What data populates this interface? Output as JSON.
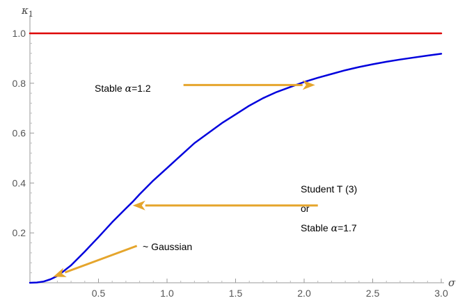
{
  "chart_data": {
    "type": "line",
    "xlabel": "σ",
    "ylabel": "κ1",
    "xlim": [
      0.0,
      3.0
    ],
    "ylim": [
      0.0,
      1.0
    ],
    "x_ticks": [
      0.5,
      1.0,
      1.5,
      2.0,
      2.5,
      3.0
    ],
    "y_ticks": [
      0.2,
      0.4,
      0.6,
      0.8,
      1.0
    ],
    "tick_format_x": [
      "0.5",
      "1.0",
      "1.5",
      "2.0",
      "2.5",
      "3.0"
    ],
    "tick_format_y": [
      "0.2",
      "0.4",
      "0.6",
      "0.8",
      "1.0"
    ],
    "grid": false,
    "series": [
      {
        "color": "#dd0000",
        "x": [
          0.0,
          3.0
        ],
        "y": [
          1.0,
          1.0
        ]
      },
      {
        "color": "#0000dd",
        "x": [
          0.0,
          0.05,
          0.1,
          0.15,
          0.2,
          0.3,
          0.4,
          0.5,
          0.6,
          0.7,
          0.75,
          0.8,
          0.9,
          1.0,
          1.1,
          1.2,
          1.3,
          1.4,
          1.5,
          1.6,
          1.7,
          1.8,
          1.9,
          2.0,
          2.1,
          2.2,
          2.3,
          2.4,
          2.5,
          2.6,
          2.7,
          2.8,
          2.9,
          3.0
        ],
        "y": [
          0.0,
          0.001,
          0.005,
          0.014,
          0.027,
          0.07,
          0.125,
          0.183,
          0.243,
          0.298,
          0.325,
          0.355,
          0.41,
          0.46,
          0.51,
          0.56,
          0.6,
          0.64,
          0.675,
          0.71,
          0.74,
          0.765,
          0.785,
          0.805,
          0.822,
          0.837,
          0.852,
          0.865,
          0.876,
          0.886,
          0.895,
          0.903,
          0.911,
          0.918
        ]
      }
    ],
    "annotations": [
      {
        "text_parts": [
          "Stable ",
          "α",
          "=1.2"
        ],
        "arrow_from": [
          1.12,
          0.793
        ],
        "arrow_to": [
          2.08,
          0.793
        ]
      },
      {
        "text_parts": [
          "Student T (3)"
        ],
        "arrow_from": [
          2.1,
          0.31
        ],
        "arrow_to": [
          0.75,
          0.31
        ]
      },
      {
        "text_parts": [
          "or"
        ]
      },
      {
        "text_parts": [
          "Stable ",
          "α",
          "=1.7"
        ]
      },
      {
        "text_parts": [
          "~ Gaussian"
        ],
        "arrow_from": [
          0.78,
          0.148
        ],
        "arrow_to": [
          0.17,
          0.024
        ]
      }
    ],
    "arrow_color": "#e5a52c"
  }
}
